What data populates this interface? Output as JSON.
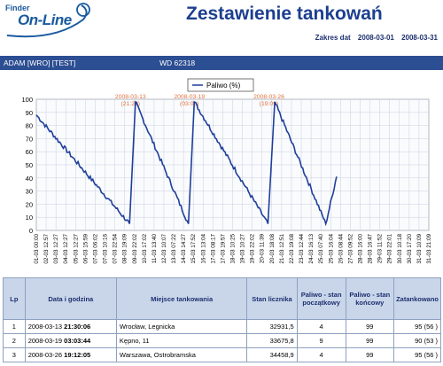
{
  "logo": {
    "line1": "Finder",
    "line2": "On-Line"
  },
  "title": "Zestawienie tankowań",
  "range": {
    "label": "Zakres dat",
    "from": "2008-03-01",
    "to": "2008-03-31"
  },
  "bar": {
    "driver": "ADAM [WRO] [TEST]",
    "vehicle": "WD 62318"
  },
  "chart_data": {
    "type": "line",
    "legend": "Paliwo (%)",
    "legend_position": "top-center",
    "ylim": [
      0,
      100
    ],
    "yticks": [
      0,
      10,
      20,
      30,
      40,
      50,
      60,
      70,
      80,
      90,
      100
    ],
    "grid": true,
    "line_color": "#1f3f9a",
    "annotation_color": "#e07040",
    "x_labels": [
      "01-03 00:00",
      "02-03 12:57",
      "03-03 12:27",
      "04-03 12:27",
      "05-03 12:27",
      "06-03 15:59",
      "07-03 06:02",
      "07-03 10:16",
      "07-03 22:54",
      "08-03 19:09",
      "09-03 22:02",
      "10-03 17:02",
      "11-03 13:40",
      "12-03 10:07",
      "13-03 07:22",
      "14-03 14:27",
      "15-03 17:52",
      "16-03 13:04",
      "17-03 08:17",
      "17-03 19:57",
      "18-03 10:25",
      "19-03 10:27",
      "19-03 22:02",
      "20-03 11:39",
      "20-03 18:08",
      "21-03 12:51",
      "22-03 19:08",
      "23-03 12:44",
      "24-03 16:13",
      "25-03 07:40",
      "25-03 16:04",
      "26-03 08:44",
      "27-03 09:52",
      "28-03 16:00",
      "28-03 16:47",
      "29-03 11:52",
      "29-03 22:01",
      "30-03 10:18",
      "30-03 17:20",
      "31-03 10:09",
      "31-03 21:09"
    ],
    "series": [
      {
        "x": [
          0,
          9.5,
          10.1,
          15.5,
          16.1,
          23.6,
          24.3,
          29.5,
          30.6
        ],
        "y": [
          88,
          5,
          98,
          5,
          98,
          5,
          98,
          5,
          41
        ]
      }
    ],
    "annotations": [
      {
        "date": "2008-03-13",
        "time": "(21:27)",
        "x": 9.6
      },
      {
        "date": "2008-03-19",
        "time": "(03:00)",
        "x": 15.6
      },
      {
        "date": "2008-03-26",
        "time": "(19:09)",
        "x": 23.7
      }
    ]
  },
  "table": {
    "headers": [
      "Lp",
      "Data i godzina",
      "Miejsce tankowania",
      "Stan licznika",
      "Paliwo - stan początkowy",
      "Paliwo - stan końcowy",
      "Zatankowano"
    ],
    "rows": [
      {
        "lp": "1",
        "date": "2008-03-13",
        "time": "21:30:06",
        "place": "Wrocław, Legnicka",
        "odometer": "32931,5",
        "start": "4",
        "end": "99",
        "filled": "95 (56 )"
      },
      {
        "lp": "2",
        "date": "2008-03-19",
        "time": "03:03:44",
        "place": "Kępno, 11",
        "odometer": "33675,8",
        "start": "9",
        "end": "99",
        "filled": "90 (53 )"
      },
      {
        "lp": "3",
        "date": "2008-03-26",
        "time": "19:12:05",
        "place": "Warszawa, Ostrobramska",
        "odometer": "34458,9",
        "start": "4",
        "end": "99",
        "filled": "95 (56 )"
      }
    ]
  }
}
